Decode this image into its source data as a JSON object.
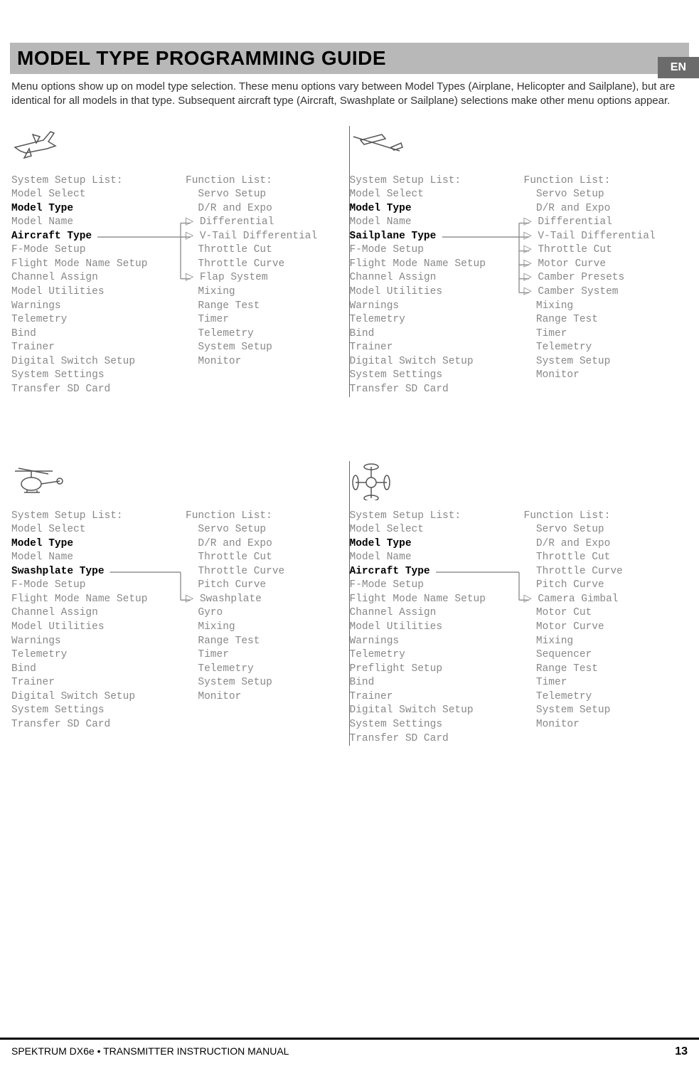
{
  "lang_tab": "EN",
  "title": "MODEL TYPE PROGRAMMING GUIDE",
  "intro": "Menu options show up on model type selection. These menu options vary between Model Types (Airplane, Helicopter and Sailplane), but are identical for all models in that type. Subsequent aircraft type (Aircraft, Swashplate or Sailplane) selections make other menu options appear.",
  "footer_left": "SPEKTRUM DX6e • TRANSMITTER INSTRUCTION MANUAL",
  "footer_page": "13",
  "colors": {
    "title_bg": "#b8b8b8",
    "lang_tab_bg": "#6b6b6b",
    "mono_text": "#888888",
    "bold_text": "#000000"
  },
  "sections": [
    {
      "id": "airplane",
      "icon": "airplane",
      "sys_header": "System Setup List:",
      "sys_items": [
        {
          "t": "Model Select",
          "b": false
        },
        {
          "t": "Model Type",
          "b": true
        },
        {
          "t": "Model Name",
          "b": false
        },
        {
          "t": "Aircraft Type",
          "b": true,
          "arrow_from": true
        },
        {
          "t": "F-Mode Setup",
          "b": false
        },
        {
          "t": "Flight Mode Name Setup",
          "b": false
        },
        {
          "t": "Channel Assign",
          "b": false
        },
        {
          "t": "Model Utilities",
          "b": false
        },
        {
          "t": "Warnings",
          "b": false
        },
        {
          "t": "Telemetry",
          "b": false
        },
        {
          "t": "Bind",
          "b": false
        },
        {
          "t": "Trainer",
          "b": false
        },
        {
          "t": "Digital Switch Setup",
          "b": false
        },
        {
          "t": "System Settings",
          "b": false
        },
        {
          "t": "Transfer SD Card",
          "b": false
        }
      ],
      "fn_header": "Function List:",
      "fn_items": [
        {
          "t": "Servo Setup",
          "arrow": false
        },
        {
          "t": "D/R and Expo",
          "arrow": false
        },
        {
          "t": "Differential",
          "arrow": true
        },
        {
          "t": "V-Tail Differential",
          "arrow": true
        },
        {
          "t": "Throttle Cut",
          "arrow": false
        },
        {
          "t": "Throttle Curve",
          "arrow": false
        },
        {
          "t": "Flap System",
          "arrow": true
        },
        {
          "t": "Mixing",
          "arrow": false
        },
        {
          "t": "Range Test",
          "arrow": false
        },
        {
          "t": "Timer",
          "arrow": false
        },
        {
          "t": "Telemetry",
          "arrow": false
        },
        {
          "t": "System Setup",
          "arrow": false
        },
        {
          "t": "Monitor",
          "arrow": false
        }
      ],
      "vsep": true
    },
    {
      "id": "sailplane",
      "icon": "glider",
      "sys_header": "System Setup List:",
      "sys_items": [
        {
          "t": "Model Select",
          "b": false
        },
        {
          "t": "Model Type",
          "b": true
        },
        {
          "t": "Model Name",
          "b": false
        },
        {
          "t": "Sailplane Type",
          "b": true,
          "arrow_from": true
        },
        {
          "t": "F-Mode Setup",
          "b": false
        },
        {
          "t": "Flight Mode Name Setup",
          "b": false
        },
        {
          "t": "Channel Assign",
          "b": false
        },
        {
          "t": "Model Utilities",
          "b": false
        },
        {
          "t": "Warnings",
          "b": false
        },
        {
          "t": "Telemetry",
          "b": false
        },
        {
          "t": "Bind",
          "b": false
        },
        {
          "t": "Trainer",
          "b": false
        },
        {
          "t": "Digital Switch Setup",
          "b": false
        },
        {
          "t": "System Settings",
          "b": false
        },
        {
          "t": "Transfer SD Card",
          "b": false
        }
      ],
      "fn_header": "Function List:",
      "fn_items": [
        {
          "t": "Servo Setup",
          "arrow": false
        },
        {
          "t": "D/R and Expo",
          "arrow": false
        },
        {
          "t": "Differential",
          "arrow": true
        },
        {
          "t": "V-Tail Differential",
          "arrow": true
        },
        {
          "t": "Throttle Cut",
          "arrow": true
        },
        {
          "t": "Motor Curve",
          "arrow": true
        },
        {
          "t": "Camber Presets",
          "arrow": true
        },
        {
          "t": "Camber System",
          "arrow": true
        },
        {
          "t": "Mixing",
          "arrow": false
        },
        {
          "t": "Range Test",
          "arrow": false
        },
        {
          "t": "Timer",
          "arrow": false
        },
        {
          "t": "Telemetry",
          "arrow": false
        },
        {
          "t": "System Setup",
          "arrow": false
        },
        {
          "t": "Monitor",
          "arrow": false
        }
      ],
      "vsep": false
    },
    {
      "id": "helicopter",
      "icon": "heli",
      "sys_header": "System Setup List:",
      "sys_items": [
        {
          "t": "Model Select",
          "b": false
        },
        {
          "t": "Model Type",
          "b": true
        },
        {
          "t": "Model Name",
          "b": false
        },
        {
          "t": "Swashplate Type",
          "b": true,
          "arrow_from": true
        },
        {
          "t": "F-Mode Setup",
          "b": false
        },
        {
          "t": "Flight Mode Name Setup",
          "b": false
        },
        {
          "t": "Channel Assign",
          "b": false
        },
        {
          "t": "Model Utilities",
          "b": false
        },
        {
          "t": "Warnings",
          "b": false
        },
        {
          "t": "Telemetry",
          "b": false
        },
        {
          "t": "Bind",
          "b": false
        },
        {
          "t": "Trainer",
          "b": false
        },
        {
          "t": "Digital Switch Setup",
          "b": false
        },
        {
          "t": "System Settings",
          "b": false
        },
        {
          "t": "Transfer SD Card",
          "b": false
        }
      ],
      "fn_header": "Function List:",
      "fn_items": [
        {
          "t": "Servo Setup",
          "arrow": false
        },
        {
          "t": "D/R and Expo",
          "arrow": false
        },
        {
          "t": "Throttle Cut",
          "arrow": false
        },
        {
          "t": "Throttle Curve",
          "arrow": false
        },
        {
          "t": "Pitch Curve",
          "arrow": false
        },
        {
          "t": "Swashplate",
          "arrow": true
        },
        {
          "t": "Gyro",
          "arrow": false
        },
        {
          "t": "Mixing",
          "arrow": false
        },
        {
          "t": "Range Test",
          "arrow": false
        },
        {
          "t": "Timer",
          "arrow": false
        },
        {
          "t": "Telemetry",
          "arrow": false
        },
        {
          "t": "System Setup",
          "arrow": false
        },
        {
          "t": "Monitor",
          "arrow": false
        }
      ],
      "vsep": true
    },
    {
      "id": "multirotor",
      "icon": "quad",
      "sys_header": "System Setup List:",
      "sys_items": [
        {
          "t": "Model Select",
          "b": false
        },
        {
          "t": "Model Type",
          "b": true
        },
        {
          "t": "Model Name",
          "b": false
        },
        {
          "t": "Aircraft Type",
          "b": true,
          "arrow_from": true
        },
        {
          "t": "F-Mode Setup",
          "b": false
        },
        {
          "t": "Flight Mode Name Setup",
          "b": false
        },
        {
          "t": "Channel Assign",
          "b": false
        },
        {
          "t": "Model Utilities",
          "b": false
        },
        {
          "t": "Warnings",
          "b": false
        },
        {
          "t": "Telemetry",
          "b": false
        },
        {
          "t": "Preflight Setup",
          "b": false
        },
        {
          "t": "Bind",
          "b": false
        },
        {
          "t": "Trainer",
          "b": false
        },
        {
          "t": "Digital Switch Setup",
          "b": false
        },
        {
          "t": "System Settings",
          "b": false
        },
        {
          "t": "Transfer SD Card",
          "b": false
        }
      ],
      "fn_header": "Function List:",
      "fn_items": [
        {
          "t": "Servo Setup",
          "arrow": false
        },
        {
          "t": "D/R and Expo",
          "arrow": false
        },
        {
          "t": "Throttle Cut",
          "arrow": false
        },
        {
          "t": "Throttle Curve",
          "arrow": false
        },
        {
          "t": "Pitch Curve",
          "arrow": false
        },
        {
          "t": "Camera Gimbal",
          "arrow": true
        },
        {
          "t": "Motor Cut",
          "arrow": false
        },
        {
          "t": "Motor Curve",
          "arrow": false
        },
        {
          "t": "Mixing",
          "arrow": false
        },
        {
          "t": "Sequencer",
          "arrow": false
        },
        {
          "t": "Range Test",
          "arrow": false
        },
        {
          "t": "Timer",
          "arrow": false
        },
        {
          "t": "Telemetry",
          "arrow": false
        },
        {
          "t": "System Setup",
          "arrow": false
        },
        {
          "t": "Monitor",
          "arrow": false
        }
      ],
      "vsep": false
    }
  ]
}
